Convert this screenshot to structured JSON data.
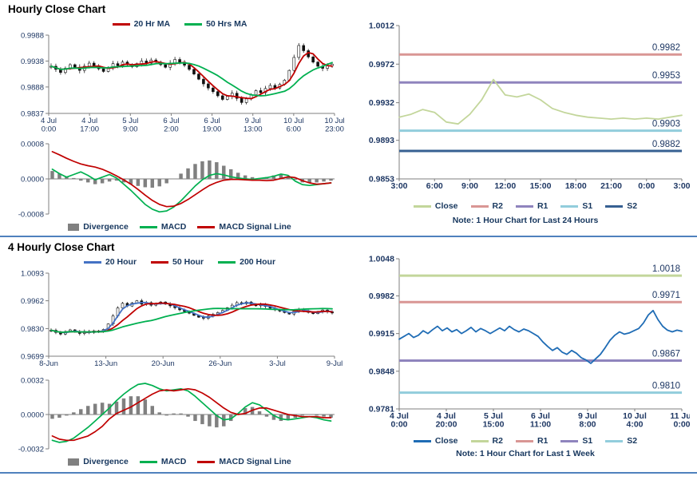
{
  "page": {
    "section1_title": "Hourly Close Chart",
    "section2_title": "4 Hourly Close Chart",
    "divider_color": "#4f81bd"
  },
  "chart_data": [
    {
      "id": "hourly-candles",
      "type": "candlestick",
      "ylim": [
        0.9837,
        0.9988
      ],
      "yticks": [
        0.9837,
        0.9888,
        0.9938,
        0.9988
      ],
      "ytick_labels": [
        "0.9837",
        "0.9888",
        "0.9938",
        "0.9988"
      ],
      "xtick_labels": [
        [
          "4 Jul",
          "0:00"
        ],
        [
          "4 Jul",
          "17:00"
        ],
        [
          "5 Jul",
          "9:00"
        ],
        [
          "6 Jul",
          "2:00"
        ],
        [
          "6 Jul",
          "19:00"
        ],
        [
          "9 Jul",
          "13:00"
        ],
        [
          "10 Jul",
          "6:00"
        ],
        [
          "10 Jul",
          "23:00"
        ]
      ],
      "wick": 0.0006,
      "close": [
        0.9928,
        0.9922,
        0.9916,
        0.9924,
        0.9931,
        0.9926,
        0.992,
        0.9928,
        0.9934,
        0.9929,
        0.9923,
        0.9918,
        0.9926,
        0.9933,
        0.9929,
        0.9936,
        0.9931,
        0.9927,
        0.9933,
        0.9938,
        0.9934,
        0.994,
        0.9936,
        0.9931,
        0.9926,
        0.9934,
        0.9941,
        0.9936,
        0.993,
        0.9922,
        0.9913,
        0.9903,
        0.9894,
        0.9886,
        0.9879,
        0.9871,
        0.9864,
        0.987,
        0.9876,
        0.9866,
        0.9858,
        0.9865,
        0.9873,
        0.9881,
        0.9877,
        0.9885,
        0.9891,
        0.9886,
        0.9893,
        0.9901,
        0.992,
        0.9945,
        0.9968,
        0.9958,
        0.9946,
        0.9936,
        0.9928,
        0.9924,
        0.9929,
        0.9932
      ],
      "series": [
        {
          "name": "20 Hr MA",
          "color": "#c00000",
          "window": 4
        },
        {
          "name": "50 Hrs MA",
          "color": "#00b050",
          "window": 11
        }
      ],
      "legend": [
        {
          "label": "20 Hr MA",
          "color": "#c00000",
          "swatch": "line"
        },
        {
          "label": "50 Hrs MA",
          "color": "#00b050",
          "swatch": "line"
        }
      ]
    },
    {
      "id": "hourly-macd",
      "type": "macd",
      "ylim": [
        -0.0008,
        0.0008
      ],
      "yticks": [
        -0.0008,
        0,
        0.0008
      ],
      "ytick_labels": [
        "-0.0008",
        "0.0000",
        "0.0008"
      ],
      "macd": [
        0.00022,
        0.00012,
        4e-05,
        0.0001,
        0.00016,
        8e-05,
        -2e-05,
        4e-05,
        0.0001,
        2e-05,
        -0.00012,
        -0.00026,
        -0.00042,
        -0.00058,
        -0.00069,
        -0.00075,
        -0.00073,
        -0.00064,
        -0.0005,
        -0.00033,
        -0.00016,
        -2e-05,
        8e-05,
        0.00012,
        9e-05,
        5e-05,
        2e-05,
        0.0,
        -1e-05,
        1e-05,
        3e-05,
        6e-05,
        0.00011,
        8e-05,
        -5e-05,
        -0.00013,
        -0.00015,
        -0.00013,
        -0.00011,
        -9e-05
      ],
      "signal": [
        0.00062,
        0.00055,
        0.00047,
        0.0004,
        0.00034,
        0.0003,
        0.00027,
        0.00022,
        0.00015,
        7e-05,
        -2e-05,
        -0.00012,
        -0.00024,
        -0.00037,
        -0.00049,
        -0.00058,
        -0.00063,
        -0.00062,
        -0.00056,
        -0.00047,
        -0.00036,
        -0.00025,
        -0.00015,
        -8e-05,
        -3e-05,
        -1e-05,
        -1e-05,
        -2e-05,
        -3e-05,
        -3e-05,
        -4e-05,
        -3e-05,
        1e-05,
        5e-05,
        3e-05,
        -4e-05,
        -9e-05,
        -0.00012,
        -0.00011,
        -9e-05
      ],
      "divergence": [
        0.00018,
        0.00012,
        6e-05,
        2e-05,
        -4e-05,
        -8e-05,
        -0.00012,
        -0.0001,
        -6e-05,
        -4e-05,
        -8e-05,
        -0.00012,
        -0.00016,
        -0.00019,
        -0.0002,
        -0.00017,
        -0.0001,
        0.0,
        0.00012,
        0.00024,
        0.00034,
        0.0004,
        0.00042,
        0.00038,
        0.0003,
        0.00022,
        0.00014,
        8e-05,
        4e-05,
        2e-05,
        4e-05,
        8e-05,
        0.0001,
        6e-05,
        -2e-05,
        -8e-05,
        -0.0001,
        -8e-05,
        -6e-05,
        -4e-05
      ],
      "colors": {
        "divergence": "#808080",
        "macd": "#00b050",
        "signal": "#c00000"
      },
      "legend": [
        {
          "label": "Divergence",
          "color": "#808080",
          "swatch": "box"
        },
        {
          "label": "MACD",
          "color": "#00b050",
          "swatch": "line"
        },
        {
          "label": "MACD Signal Line",
          "color": "#c00000",
          "swatch": "line"
        }
      ]
    },
    {
      "id": "hourly-pivot",
      "type": "line",
      "ylim": [
        0.9853,
        1.0012
      ],
      "yticks": [
        0.9853,
        0.9893,
        0.9932,
        0.9972,
        1.0012
      ],
      "ytick_labels": [
        "0.9853",
        "0.9893",
        "0.9932",
        "0.9972",
        "1.0012"
      ],
      "xtick_labels": [
        "3:00",
        "6:00",
        "9:00",
        "12:00",
        "15:00",
        "18:00",
        "21:00",
        "0:00",
        "3:00"
      ],
      "close_color": "#c3d69b",
      "close": [
        0.9917,
        0.992,
        0.9925,
        0.9922,
        0.9912,
        0.991,
        0.992,
        0.9935,
        0.9956,
        0.994,
        0.9938,
        0.9941,
        0.9935,
        0.9926,
        0.9922,
        0.9919,
        0.9917,
        0.9916,
        0.9915,
        0.9916,
        0.9915,
        0.9916,
        0.9915,
        0.9917,
        0.9919
      ],
      "levels": [
        {
          "name": "R2",
          "value": 0.9982,
          "color": "#d99694"
        },
        {
          "name": "R1",
          "value": 0.9953,
          "color": "#8f84bd"
        },
        {
          "name": "S1",
          "value": 0.9903,
          "color": "#92cddc"
        },
        {
          "name": "S2",
          "value": 0.9882,
          "color": "#376092"
        }
      ],
      "legend": [
        {
          "label": "Close",
          "color": "#c3d69b",
          "swatch": "line"
        },
        {
          "label": "R2",
          "color": "#d99694",
          "swatch": "line"
        },
        {
          "label": "R1",
          "color": "#8f84bd",
          "swatch": "line"
        },
        {
          "label": "S1",
          "color": "#92cddc",
          "swatch": "line"
        },
        {
          "label": "S2",
          "color": "#376092",
          "swatch": "line"
        }
      ],
      "note": "Note: 1 Hour Chart for Last 24 Hours"
    },
    {
      "id": "fourhour-candles",
      "type": "candlestick",
      "ylim": [
        0.9699,
        1.0093
      ],
      "yticks": [
        0.9699,
        0.983,
        0.9962,
        1.0093
      ],
      "ytick_labels": [
        "0.9699",
        "0.9830",
        "0.9962",
        "1.0093"
      ],
      "xtick_labels": [
        "8-Jun",
        "13-Jun",
        "20-Jun",
        "26-Jun",
        "3-Jul",
        "9-Jul"
      ],
      "wick": 0.001,
      "close": [
        0.9822,
        0.9812,
        0.9804,
        0.9816,
        0.9824,
        0.9814,
        0.9807,
        0.9817,
        0.9811,
        0.9819,
        0.9814,
        0.9826,
        0.9852,
        0.989,
        0.9928,
        0.995,
        0.9937,
        0.9952,
        0.9962,
        0.9946,
        0.9953,
        0.9941,
        0.9948,
        0.9956,
        0.9946,
        0.9938,
        0.9929,
        0.9919,
        0.9911,
        0.9903,
        0.9893,
        0.9884,
        0.9879,
        0.9889,
        0.9898,
        0.9906,
        0.9916,
        0.9929,
        0.9941,
        0.9953,
        0.9948,
        0.9956,
        0.9946,
        0.9938,
        0.9943,
        0.9935,
        0.9927,
        0.9919,
        0.9913,
        0.9906,
        0.9899,
        0.9912,
        0.9921,
        0.9914,
        0.9907,
        0.9901,
        0.9911,
        0.9918,
        0.991,
        0.9904
      ],
      "series": [
        {
          "name": "20 Hour",
          "color": "#4472c4",
          "window": 3
        },
        {
          "name": "50 Hour",
          "color": "#c00000",
          "window": 7
        },
        {
          "name": "200 Hour",
          "color": "#00b050",
          "window": 22
        }
      ],
      "legend": [
        {
          "label": "20 Hour",
          "color": "#4472c4",
          "swatch": "line"
        },
        {
          "label": "50 Hour",
          "color": "#c00000",
          "swatch": "line"
        },
        {
          "label": "200 Hour",
          "color": "#00b050",
          "swatch": "line"
        }
      ]
    },
    {
      "id": "fourhour-macd",
      "type": "macd",
      "ylim": [
        -0.0032,
        0.0032
      ],
      "yticks": [
        -0.0032,
        0,
        0.0032
      ],
      "ytick_labels": [
        "-0.0032",
        "0.0000",
        "0.0032"
      ],
      "macd": [
        -0.0024,
        -0.0026,
        -0.0025,
        -0.0022,
        -0.0017,
        -0.0012,
        -0.0006,
        0.0,
        0.0006,
        0.0013,
        0.0019,
        0.0024,
        0.0028,
        0.0029,
        0.0027,
        0.0024,
        0.0022,
        0.0023,
        0.0024,
        0.0022,
        0.0017,
        0.0011,
        0.0005,
        -0.0001,
        -0.0005,
        -0.0004,
        0.0001,
        0.0007,
        0.0011,
        0.0009,
        0.0004,
        -0.0001,
        -0.0004,
        -0.0005,
        -0.0004,
        -0.0003,
        -0.0002,
        -0.0003,
        -0.0005,
        -0.0006
      ],
      "signal": [
        -0.002,
        -0.0023,
        -0.0024,
        -0.0024,
        -0.0022,
        -0.002,
        -0.0016,
        -0.0011,
        -0.0004,
        0.0001,
        0.0004,
        0.0007,
        0.0011,
        0.0015,
        0.0019,
        0.0022,
        0.0023,
        0.0022,
        0.0023,
        0.0024,
        0.0023,
        0.002,
        0.0016,
        0.0011,
        0.0006,
        0.0002,
        0.0,
        0.0001,
        0.0004,
        0.0006,
        0.0006,
        0.0004,
        0.0002,
        0.0,
        -0.0001,
        -0.0002,
        -0.0002,
        -0.0002,
        -0.0003,
        -0.0003
      ],
      "divergence": [
        -0.0004,
        -0.0003,
        -0.0001,
        0.0002,
        0.0005,
        0.0008,
        0.001,
        0.0011,
        0.001,
        0.0012,
        0.0015,
        0.0017,
        0.0017,
        0.0014,
        0.0008,
        0.0002,
        -0.0001,
        0.0001,
        0.0001,
        -0.0002,
        -0.0006,
        -0.0009,
        -0.0011,
        -0.0012,
        -0.0011,
        -0.0006,
        0.0001,
        0.0006,
        0.0007,
        0.0003,
        -0.0002,
        -0.0005,
        -0.0006,
        -0.0005,
        -0.0003,
        -0.0001,
        0.0,
        -0.0001,
        -0.0002,
        -0.0003
      ],
      "colors": {
        "divergence": "#808080",
        "macd": "#00b050",
        "signal": "#c00000"
      },
      "legend": [
        {
          "label": "Divergence",
          "color": "#808080",
          "swatch": "box"
        },
        {
          "label": "MACD",
          "color": "#00b050",
          "swatch": "line"
        },
        {
          "label": "MACD Signal Line",
          "color": "#c00000",
          "swatch": "line"
        }
      ]
    },
    {
      "id": "fourhour-pivot",
      "type": "line",
      "ylim": [
        0.9781,
        1.0048
      ],
      "yticks": [
        0.9781,
        0.9848,
        0.9915,
        0.9982,
        1.0048
      ],
      "ytick_labels": [
        "0.9781",
        "0.9848",
        "0.9915",
        "0.9982",
        "1.0048"
      ],
      "xtick_labels": [
        [
          "4 Jul",
          "0:00"
        ],
        [
          "4 Jul",
          "20:00"
        ],
        [
          "5 Jul",
          "15:00"
        ],
        [
          "6 Jul",
          "11:00"
        ],
        [
          "9 Jul",
          "8:00"
        ],
        [
          "10 Jul",
          "4:00"
        ],
        [
          "11 Jul",
          "0:00"
        ]
      ],
      "close_color": "#1f6cb5",
      "close": [
        0.9905,
        0.991,
        0.9915,
        0.9908,
        0.9912,
        0.992,
        0.9915,
        0.9922,
        0.9928,
        0.992,
        0.9925,
        0.9918,
        0.9922,
        0.9915,
        0.992,
        0.9926,
        0.9918,
        0.9924,
        0.992,
        0.9915,
        0.992,
        0.9925,
        0.992,
        0.9928,
        0.9922,
        0.9918,
        0.9923,
        0.992,
        0.9915,
        0.991,
        0.99,
        0.9892,
        0.9885,
        0.989,
        0.9882,
        0.9878,
        0.9885,
        0.988,
        0.9872,
        0.9868,
        0.9862,
        0.987,
        0.9878,
        0.989,
        0.9903,
        0.9912,
        0.9918,
        0.9914,
        0.9916,
        0.992,
        0.9924,
        0.9934,
        0.9948,
        0.9956,
        0.994,
        0.9928,
        0.9921,
        0.9918,
        0.9921,
        0.9919
      ],
      "levels": [
        {
          "name": "R2",
          "value": 1.0018,
          "color": "#c3d69b"
        },
        {
          "name": "R1",
          "value": 0.9971,
          "color": "#d99694"
        },
        {
          "name": "S1",
          "value": 0.9867,
          "color": "#8f84bd"
        },
        {
          "name": "S2",
          "value": 0.981,
          "color": "#92cddc"
        }
      ],
      "legend": [
        {
          "label": "Close",
          "color": "#1f6cb5",
          "swatch": "line"
        },
        {
          "label": "R2",
          "color": "#c3d69b",
          "swatch": "line"
        },
        {
          "label": "R1",
          "color": "#d99694",
          "swatch": "line"
        },
        {
          "label": "S1",
          "color": "#8f84bd",
          "swatch": "line"
        },
        {
          "label": "S2",
          "color": "#92cddc",
          "swatch": "line"
        }
      ],
      "note": "Note: 1 Hour Chart for Last 1 Week"
    }
  ]
}
